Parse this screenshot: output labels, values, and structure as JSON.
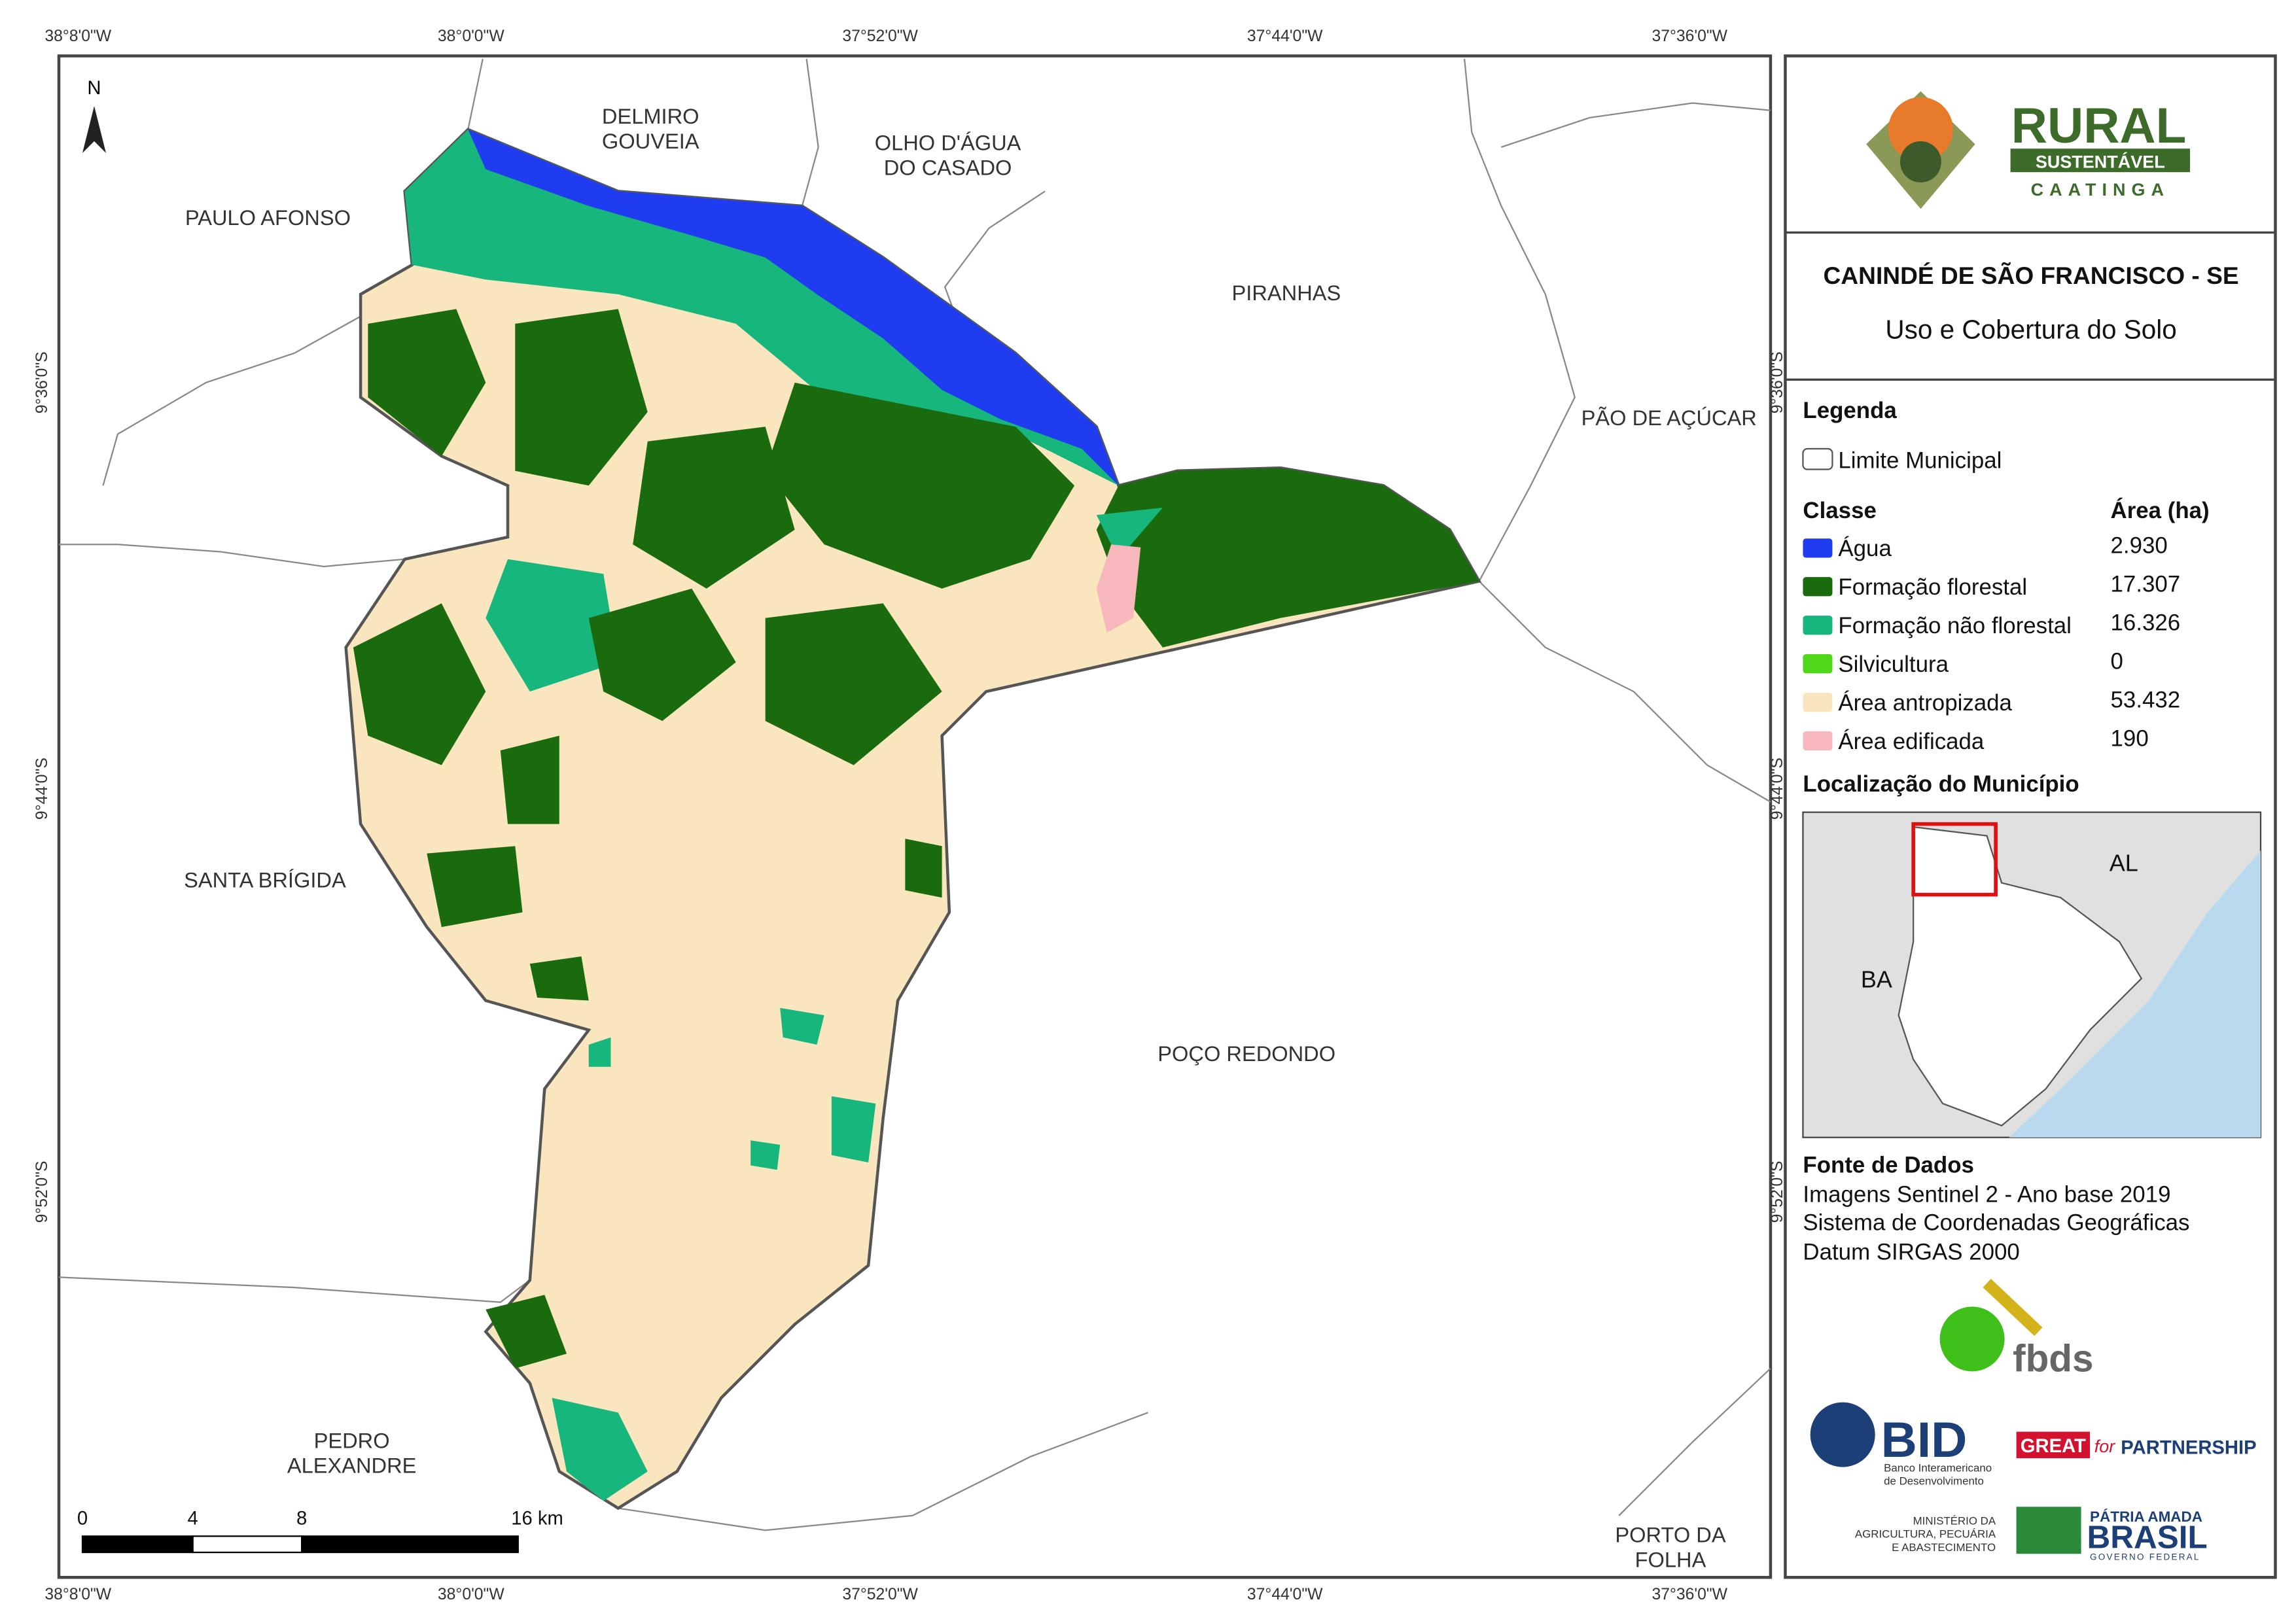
{
  "map": {
    "coordinates": {
      "top": [
        "38°8'0\"W",
        "38°0'0\"W",
        "37°52'0\"W",
        "37°44'0\"W",
        "37°36'0\"W"
      ],
      "bottom": [
        "38°8'0\"W",
        "38°0'0\"W",
        "37°52'0\"W",
        "37°44'0\"W",
        "37°36'0\"W"
      ],
      "left": [
        "9°36'0\"S",
        "9°44'0\"S",
        "9°52'0\"S"
      ],
      "right": [
        "9°36'0\"S",
        "9°44'0\"S",
        "9°52'0\"S"
      ]
    },
    "places": [
      [
        "PAULO AFONSO"
      ],
      [
        "DELMIRO",
        "GOUVEIA"
      ],
      [
        "OLHO D'ÁGUA",
        "DO CASADO"
      ],
      [
        "PIRANHAS"
      ],
      [
        "PÃO DE AÇÚCAR"
      ],
      [
        "SANTA BRÍGIDA"
      ],
      [
        "POÇO REDONDO"
      ],
      [
        "PEDRO",
        "ALEXANDRE"
      ],
      [
        "PORTO DA",
        "FOLHA"
      ]
    ],
    "north": "N",
    "scale": [
      "0",
      "4",
      "8",
      "16 km"
    ]
  },
  "panel": {
    "logo": {
      "title": "RURAL",
      "subtitle": "SUSTENTÁVEL",
      "tagline": "CAATINGA"
    },
    "title": "CANINDÉ DE SÃO FRANCISCO - SE",
    "subtitle": "Uso e Cobertura do Solo",
    "legend": {
      "heading": "Legenda",
      "boundary": "Limite Municipal",
      "class_header": "Classe",
      "area_header": "Área (ha)",
      "classes": [
        {
          "name": "Água",
          "area": "2.930",
          "color": "#1f3cf0"
        },
        {
          "name": "Formação florestal",
          "area": "17.307",
          "color": "#1a6b0e"
        },
        {
          "name": "Formação não florestal",
          "area": "16.326",
          "color": "#17b67c"
        },
        {
          "name": "Silvicultura",
          "area": "0",
          "color": "#4fd81a"
        },
        {
          "name": "Área antropizada",
          "area": "53.432",
          "color": "#f9e6bf"
        },
        {
          "name": "Área edificada",
          "area": "190",
          "color": "#f6b8bc"
        }
      ]
    },
    "location": {
      "heading": "Localização do Município",
      "labels": [
        "AL",
        "BA"
      ]
    },
    "sources": {
      "heading": "Fonte de Dados",
      "lines": [
        "Imagens Sentinel 2 - Ano base 2019",
        "Sistema de Coordenadas Geográficas",
        "Datum SIRGAS 2000"
      ]
    },
    "partners": {
      "fbds": "fbds",
      "bid": "BID",
      "bid_name": [
        "Banco Interamericano",
        "de Desenvolvimento"
      ],
      "great": "GREAT",
      "for": "for",
      "partnership": "PARTNERSHIP",
      "ministry": [
        "MINISTÉRIO DA",
        "AGRICULTURA, PECUÁRIA",
        "E ABASTECIMENTO"
      ],
      "patria": "PÁTRIA AMADA",
      "brasil": "BRASIL",
      "governo": "GOVERNO FEDERAL"
    }
  }
}
